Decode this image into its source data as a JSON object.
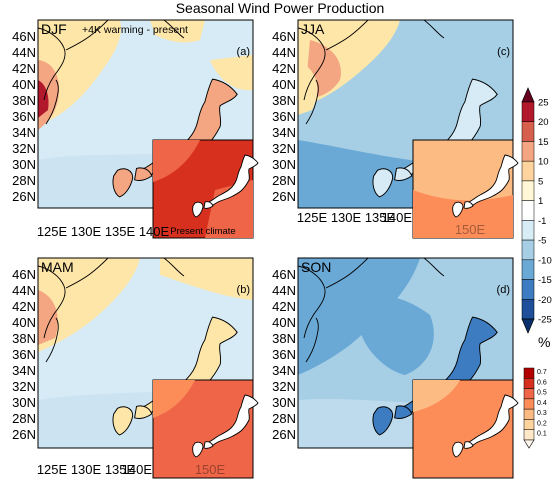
{
  "title": "Seasonal Wind Power Production",
  "subtitle": "+4K warming - present",
  "inset_caption": "Present climate",
  "panels": [
    {
      "id": "djf",
      "season": "DJF",
      "letter": "(a)"
    },
    {
      "id": "jja",
      "season": "JJA",
      "letter": "(c)"
    },
    {
      "id": "mam",
      "season": "MAM",
      "letter": "(b)"
    },
    {
      "id": "son",
      "season": "SON",
      "letter": "(d)"
    }
  ],
  "lat_labels": [
    "46N",
    "44N",
    "42N",
    "40N",
    "38N",
    "36N",
    "34N",
    "32N",
    "30N",
    "28N",
    "26N"
  ],
  "lon_labels": [
    "125E",
    "130E",
    "135E",
    "140E"
  ],
  "inset_lon_label": "150E",
  "colorbar_change": {
    "labels": [
      "25",
      "20",
      "15",
      "10",
      "5",
      "1",
      "-1",
      "-5",
      "-10",
      "-15",
      "-20",
      "-25"
    ],
    "unit": "%",
    "colors": [
      "#67001f",
      "#b2182b",
      "#d6604d",
      "#f4a582",
      "#fdd49e",
      "#fff7d6",
      "#ffffff",
      "#d8ecf6",
      "#a6cfe6",
      "#6aa9d6",
      "#3d7cc0",
      "#1f4e9a",
      "#08306b"
    ]
  },
  "colorbar_present": {
    "labels": [
      "0.7",
      "0.6",
      "0.5",
      "0.4",
      "0.3",
      "0.2",
      "0.1"
    ],
    "colors": [
      "#b30000",
      "#d7301f",
      "#ef6548",
      "#fc8d59",
      "#fdbb84",
      "#fdd49e",
      "#fee8c8",
      "#fff7ec"
    ]
  }
}
